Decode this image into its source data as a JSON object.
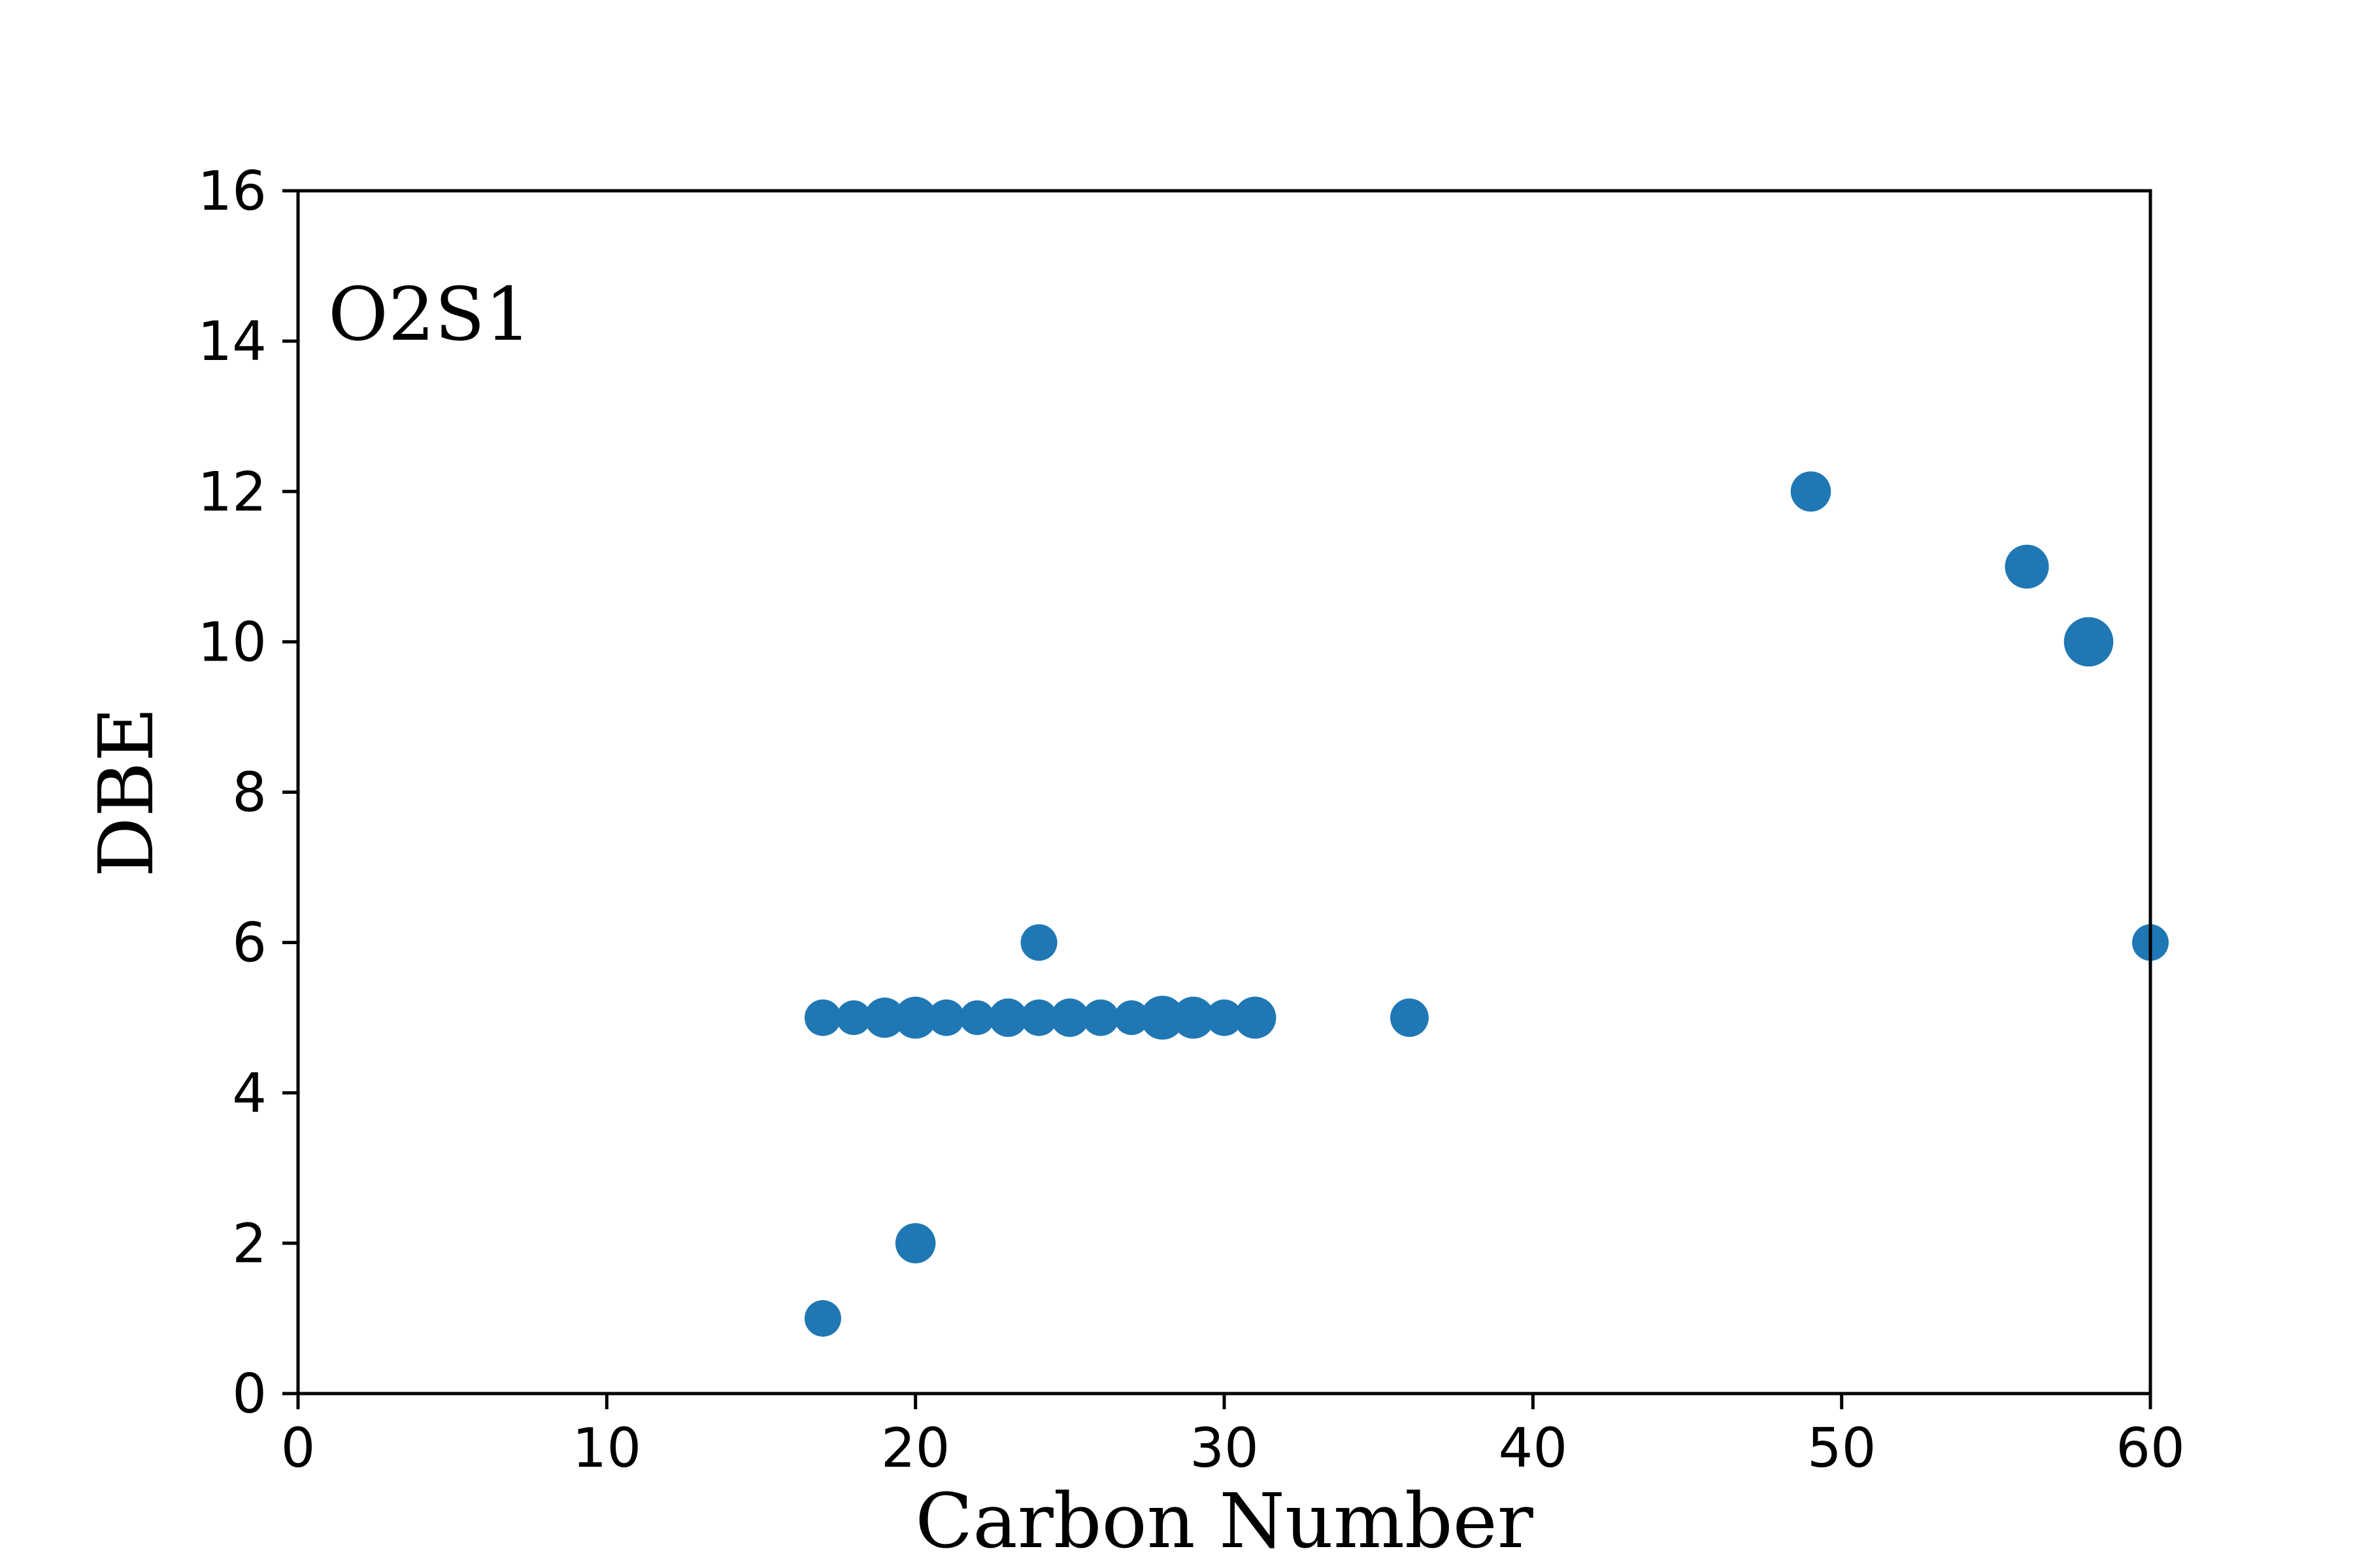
{
  "chart_data": {
    "type": "scatter",
    "annotation": "O2S1",
    "xlabel": "Carbon Number",
    "ylabel": "DBE",
    "xlim": [
      0,
      60
    ],
    "ylim": [
      0,
      16
    ],
    "xticks": [
      0,
      10,
      20,
      30,
      40,
      50,
      60
    ],
    "yticks": [
      0,
      2,
      4,
      6,
      8,
      10,
      12,
      14,
      16
    ],
    "grid": false,
    "legend": "none",
    "color": "#1f77b4",
    "size_note": "marker size encodes relative abundance",
    "points": [
      {
        "x": 17,
        "y": 1,
        "size": 1.0
      },
      {
        "x": 20,
        "y": 2,
        "size": 1.1
      },
      {
        "x": 17,
        "y": 5,
        "size": 1.0
      },
      {
        "x": 18,
        "y": 5,
        "size": 0.95
      },
      {
        "x": 19,
        "y": 5,
        "size": 1.1
      },
      {
        "x": 20,
        "y": 5,
        "size": 1.15
      },
      {
        "x": 21,
        "y": 5,
        "size": 1.0
      },
      {
        "x": 22,
        "y": 5,
        "size": 0.95
      },
      {
        "x": 23,
        "y": 5,
        "size": 1.05
      },
      {
        "x": 24,
        "y": 5,
        "size": 1.0
      },
      {
        "x": 25,
        "y": 5,
        "size": 1.05
      },
      {
        "x": 26,
        "y": 5,
        "size": 1.0
      },
      {
        "x": 27,
        "y": 5,
        "size": 0.95
      },
      {
        "x": 28,
        "y": 5,
        "size": 1.2
      },
      {
        "x": 29,
        "y": 5,
        "size": 1.15
      },
      {
        "x": 30,
        "y": 5,
        "size": 1.0
      },
      {
        "x": 31,
        "y": 5,
        "size": 1.15
      },
      {
        "x": 24,
        "y": 6,
        "size": 1.0
      },
      {
        "x": 36,
        "y": 5,
        "size": 1.05
      },
      {
        "x": 49,
        "y": 12,
        "size": 1.1
      },
      {
        "x": 56,
        "y": 11,
        "size": 1.2
      },
      {
        "x": 58,
        "y": 10,
        "size": 1.35
      },
      {
        "x": 60,
        "y": 6,
        "size": 1.0
      }
    ]
  }
}
